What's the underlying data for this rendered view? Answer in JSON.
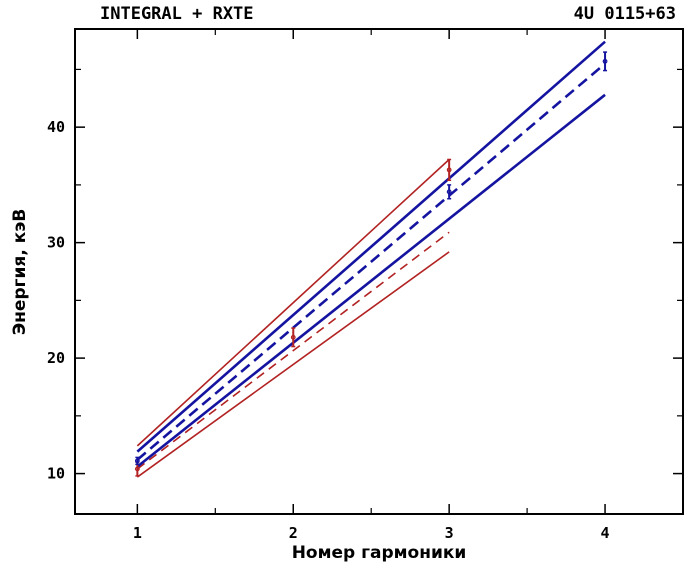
{
  "chart_data": {
    "type": "line",
    "title_left": "INTEGRAL + RXTE",
    "title_right": "4U 0115+63",
    "xlabel": "Номер гармоники",
    "ylabel": "Энергия, кэВ",
    "xlim": [
      0.6,
      4.5
    ],
    "ylim": [
      6.5,
      48.5
    ],
    "xticks": [
      1,
      2,
      3,
      4
    ],
    "yticks": [
      10,
      20,
      30,
      40
    ],
    "grid": false,
    "colors": {
      "red": "#b22222",
      "blue": "#1414a0"
    },
    "series": [
      {
        "x": [
          1,
          3
        ],
        "y": [
          12.4,
          37.2
        ],
        "color": "red",
        "style": "solid"
      },
      {
        "x": [
          1,
          3
        ],
        "y": [
          10.4,
          30.9
        ],
        "color": "red",
        "style": "dashed"
      },
      {
        "x": [
          1,
          3
        ],
        "y": [
          9.7,
          29.2
        ],
        "color": "red",
        "style": "solid"
      },
      {
        "x": [
          1,
          4
        ],
        "y": [
          11.9,
          47.4
        ],
        "color": "blue",
        "style": "solid"
      },
      {
        "x": [
          1,
          4
        ],
        "y": [
          11.2,
          45.5
        ],
        "color": "blue",
        "style": "dashed"
      },
      {
        "x": [
          1,
          4
        ],
        "y": [
          10.6,
          42.8
        ],
        "color": "blue",
        "style": "solid"
      }
    ],
    "points": [
      {
        "x": 1,
        "y": 10.4,
        "err": 0.6,
        "color": "red"
      },
      {
        "x": 2,
        "y": 21.8,
        "err": 0.8,
        "color": "red"
      },
      {
        "x": 3,
        "y": 36.3,
        "err": 0.9,
        "color": "red"
      },
      {
        "x": 1,
        "y": 11.1,
        "err": 0.3,
        "color": "blue"
      },
      {
        "x": 3,
        "y": 34.4,
        "err": 0.6,
        "color": "blue"
      },
      {
        "x": 4,
        "y": 45.7,
        "err": 0.8,
        "color": "blue"
      }
    ]
  }
}
